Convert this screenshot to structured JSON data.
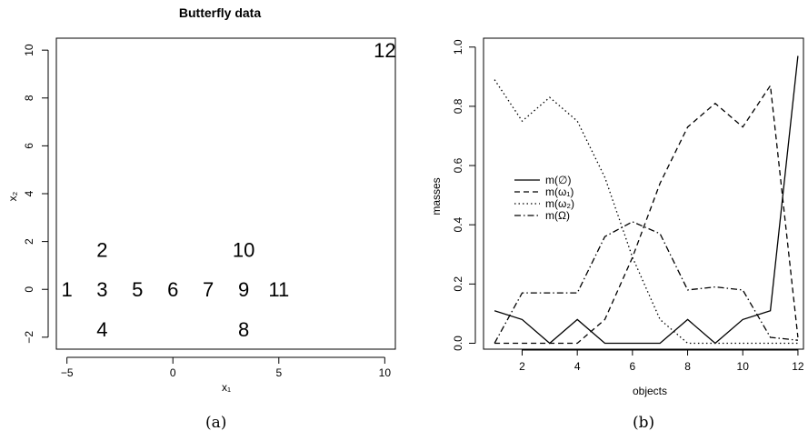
{
  "captions": {
    "a": "(a)",
    "b": "(b)"
  },
  "chart_data": [
    {
      "type": "scatter",
      "title": "Butterfly data",
      "xlabel": "x₁",
      "ylabel": "x₂",
      "xlim": [
        -5.5,
        10.5
      ],
      "ylim": [
        -2.5,
        10.5
      ],
      "xticks": [
        -5,
        0,
        5,
        10
      ],
      "yticks": [
        -2,
        0,
        2,
        4,
        6,
        8,
        10
      ],
      "marker": "point index labels",
      "points": [
        {
          "label": "1",
          "x": -5,
          "y": 0
        },
        {
          "label": "2",
          "x": -3.34,
          "y": 1.67
        },
        {
          "label": "3",
          "x": -3.34,
          "y": 0
        },
        {
          "label": "4",
          "x": -3.34,
          "y": -1.67
        },
        {
          "label": "5",
          "x": -1.67,
          "y": 0
        },
        {
          "label": "6",
          "x": 0,
          "y": 0
        },
        {
          "label": "7",
          "x": 1.67,
          "y": 0
        },
        {
          "label": "8",
          "x": 3.34,
          "y": -1.67
        },
        {
          "label": "9",
          "x": 3.34,
          "y": 0
        },
        {
          "label": "10",
          "x": 3.34,
          "y": 1.67
        },
        {
          "label": "11",
          "x": 5,
          "y": 0
        },
        {
          "label": "12",
          "x": 10,
          "y": 10
        }
      ]
    },
    {
      "type": "line",
      "xlabel": "objects",
      "ylabel": "masses",
      "xlim": [
        0.6,
        12.2
      ],
      "ylim": [
        -0.02,
        1.03
      ],
      "xticks": [
        2,
        4,
        6,
        8,
        10,
        12
      ],
      "yticks": [
        0.0,
        0.2,
        0.4,
        0.6,
        0.8,
        1.0
      ],
      "ytick_labels": [
        "0.0",
        "0.2",
        "0.4",
        "0.6",
        "0.8",
        "1.0"
      ],
      "legend_position": "left",
      "x": [
        1,
        2,
        3,
        4,
        5,
        6,
        7,
        8,
        9,
        10,
        11,
        12
      ],
      "series": [
        {
          "name": "m(∅)",
          "dash": "solid",
          "values": [
            0.11,
            0.08,
            0.0,
            0.08,
            0.0,
            0.0,
            0.0,
            0.08,
            0.0,
            0.08,
            0.11,
            0.97
          ]
        },
        {
          "name": "m(ω₁)",
          "dash": "dashed",
          "values": [
            0.0,
            0.0,
            0.0,
            0.0,
            0.08,
            0.29,
            0.54,
            0.73,
            0.81,
            0.73,
            0.87,
            0.02
          ]
        },
        {
          "name": "m(ω₂)",
          "dash": "dotted",
          "values": [
            0.89,
            0.75,
            0.83,
            0.75,
            0.56,
            0.29,
            0.08,
            0.0,
            0.0,
            0.0,
            0.0,
            0.0
          ]
        },
        {
          "name": "m(Ω)",
          "dash": "dotdash",
          "values": [
            0.0,
            0.17,
            0.17,
            0.17,
            0.36,
            0.41,
            0.37,
            0.18,
            0.19,
            0.18,
            0.02,
            0.01
          ]
        }
      ]
    }
  ]
}
